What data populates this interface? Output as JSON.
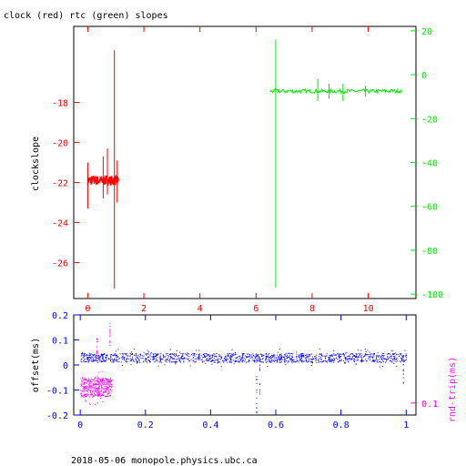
{
  "footer": "2018-05-06  monopole.physics.ubc.ca",
  "colors": {
    "red": "#ff0000",
    "green": "#00ee00",
    "blue": "#0000ff",
    "magenta": "#ff00ff",
    "frame": "#000000"
  },
  "chart_data": [
    {
      "type": "line",
      "title": "clock (red) rtc (green) slopes",
      "xlim": [
        -0.5,
        11.7
      ],
      "xticks": [
        "0",
        "2",
        "4",
        "6",
        "8",
        "10"
      ],
      "xtick_values": [
        0,
        2,
        4,
        6,
        8,
        10
      ],
      "ylabel_left": "clockslope",
      "ylim_left": [
        -27.8,
        -14.2
      ],
      "yticks_left": [
        "-18",
        "-20",
        "-22",
        "-24",
        "-26"
      ],
      "ytick_values_left": [
        -18,
        -20,
        -22,
        -24,
        -26
      ],
      "ylim_right": [
        -102,
        22
      ],
      "yticks_right": [
        "20",
        "0",
        "-20",
        "-40",
        "-60",
        "-80",
        "-100"
      ],
      "ytick_values_right": [
        20,
        0,
        -20,
        -40,
        -60,
        -80,
        -100
      ],
      "series": [
        {
          "axis": "left",
          "color": "red",
          "x_range": [
            0.0,
            1.1
          ],
          "baseline": -21.9,
          "noise": 0.25,
          "spikes": [
            {
              "x": 0.0,
              "low": -23.3,
              "high": -21.0
            },
            {
              "x": 0.55,
              "low": -22.8,
              "high": -20.7
            },
            {
              "x": 0.7,
              "low": -22.6,
              "high": -20.3
            },
            {
              "x": 0.95,
              "low": -27.3,
              "high": -15.4
            },
            {
              "x": 1.05,
              "low": -23.0,
              "high": -20.9
            }
          ]
        },
        {
          "axis": "right",
          "color": "green",
          "x_range": [
            6.5,
            11.2
          ],
          "baseline": -7.5,
          "noise": 0.9,
          "spikes": [
            {
              "x": 6.7,
              "low": -97.0,
              "high": 16.0
            },
            {
              "x": 8.2,
              "low": -12.0,
              "high": -2.0
            },
            {
              "x": 8.6,
              "low": -11.0,
              "high": -4.0
            },
            {
              "x": 9.1,
              "low": -12.0,
              "high": -4.0
            },
            {
              "x": 9.9,
              "low": -10.0,
              "high": -5.0
            }
          ]
        }
      ]
    },
    {
      "type": "scatter",
      "title": "",
      "xlim": [
        -0.02,
        1.03
      ],
      "xticks": [
        "0",
        "0.2",
        "0.4",
        "0.6",
        "0.8",
        "1"
      ],
      "xtick_values": [
        0,
        0.2,
        0.4,
        0.6,
        0.8,
        1
      ],
      "ylabel_left": "offset(ms)",
      "ylim_left": [
        -0.2,
        0.2
      ],
      "yticks_left": [
        "0.2",
        "0.1",
        "0",
        "-0.1",
        "-0.2"
      ],
      "ytick_values_left": [
        0.2,
        0.1,
        0,
        -0.1,
        -0.2
      ],
      "ylabel_right": "rnd-trip(ms)",
      "yticks_right": [
        "0.1"
      ],
      "ytick_values_right": [
        0.1
      ],
      "ylim_right": [
        0.085,
        0.21
      ],
      "series": [
        {
          "name": "offset",
          "axis": "left",
          "color": "blue",
          "x_range": [
            0.0,
            1.0
          ],
          "baseline": 0.03,
          "noise": 0.018,
          "spikes": [
            {
              "x": 0.54,
              "low": -0.19,
              "high": 0.04
            },
            {
              "x": 0.55,
              "low": -0.12,
              "high": 0.03
            },
            {
              "x": 0.99,
              "low": -0.11,
              "high": 0.04
            }
          ]
        },
        {
          "name": "rnd-trip",
          "axis": "right",
          "color": "magenta",
          "x_range": [
            0.0,
            0.095
          ],
          "baseline": 0.12,
          "noise": 0.012,
          "spikes": [
            {
              "x": 0.05,
              "low": 0.15,
              "high": 0.19
            },
            {
              "x": 0.09,
              "low": 0.16,
              "high": 0.2
            }
          ]
        }
      ]
    }
  ]
}
